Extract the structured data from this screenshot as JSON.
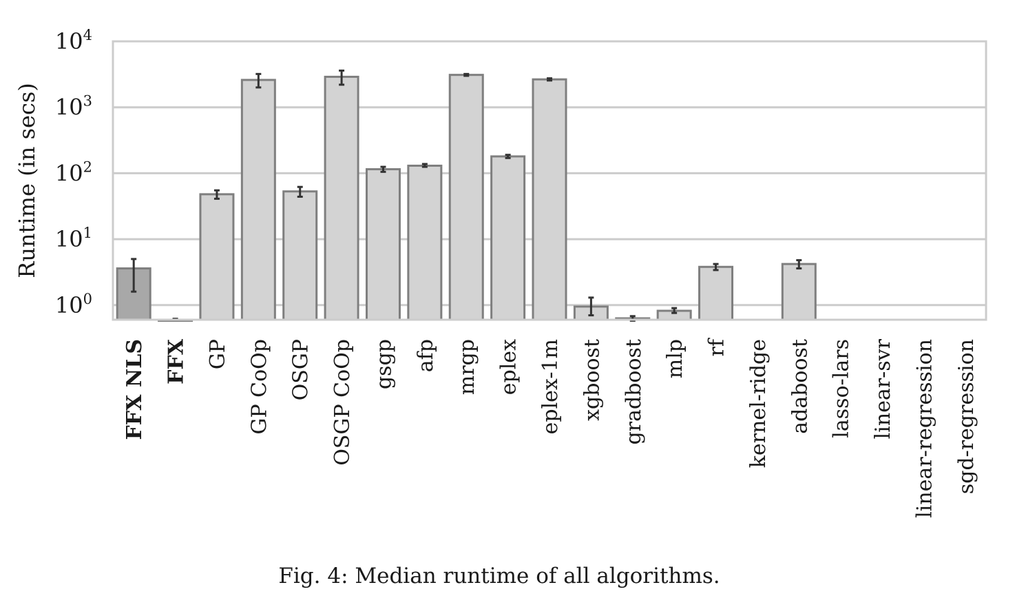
{
  "chart_data": {
    "type": "bar",
    "ylabel": "Runtime (in secs)",
    "yscale": "log",
    "ylim": [
      0.6,
      10000
    ],
    "yticks": [
      {
        "value": 1,
        "base": "10",
        "exp": "0"
      },
      {
        "value": 10,
        "base": "10",
        "exp": "1"
      },
      {
        "value": 100,
        "base": "10",
        "exp": "2"
      },
      {
        "value": 1000,
        "base": "10",
        "exp": "3"
      },
      {
        "value": 10000,
        "base": "10",
        "exp": "4"
      }
    ],
    "grid": true,
    "categories": [
      "FFX NLS",
      "FFX",
      "GP",
      "GP CoOp",
      "OSGP",
      "OSGP CoOp",
      "gsgp",
      "afp",
      "mrgp",
      "eplex",
      "eplex-1m",
      "xgboost",
      "gradboost",
      "mlp",
      "rf",
      "kernel-ridge",
      "adaboost",
      "lasso-lars",
      "linear-svr",
      "linear-regression",
      "sgd-regression"
    ],
    "bold_categories": [
      "FFX NLS",
      "FFX"
    ],
    "values": [
      3.6,
      0.6,
      48,
      2600,
      53,
      2900,
      115,
      130,
      3100,
      180,
      2650,
      0.95,
      0.63,
      0.82,
      3.8,
      null,
      4.2,
      null,
      null,
      null,
      null
    ],
    "error_low": [
      1.6,
      null,
      41,
      2000,
      44,
      2200,
      105,
      125,
      3000,
      170,
      2550,
      0.7,
      0.58,
      0.76,
      3.4,
      null,
      3.6,
      null,
      null,
      null,
      null
    ],
    "error_high": [
      5.0,
      0.62,
      55,
      3200,
      62,
      3600,
      125,
      138,
      3200,
      190,
      2750,
      1.3,
      0.68,
      0.9,
      4.2,
      null,
      4.8,
      null,
      null,
      null,
      null
    ],
    "colors": {
      "highlight": "#a8a8a8",
      "bar": "#d3d3d3",
      "edge": "#7f7f7f",
      "errorbar": "#333333",
      "grid": "#cccccc"
    },
    "highlight_categories": [
      "FFX NLS"
    ]
  },
  "caption": "Fig. 4: Median runtime of all algorithms."
}
